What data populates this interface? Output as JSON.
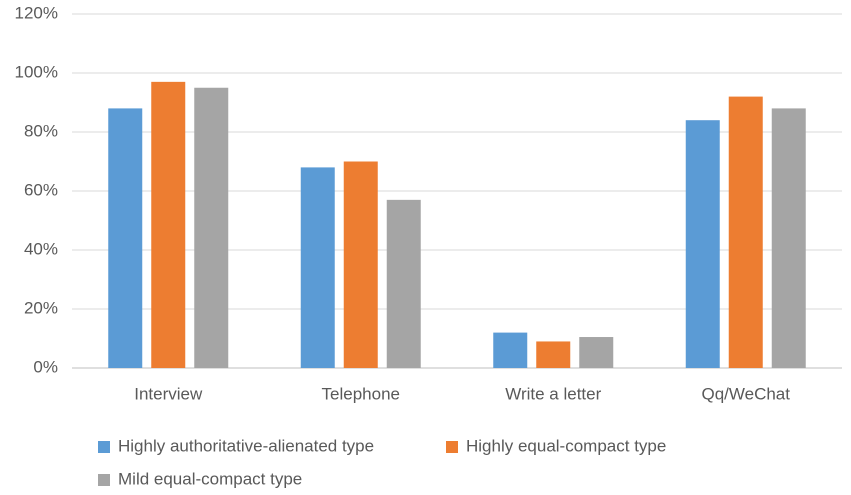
{
  "chart_data": {
    "type": "bar",
    "categories": [
      "Interview",
      "Telephone",
      "Write a letter",
      "Qq/WeChat"
    ],
    "series": [
      {
        "name": "Highly authoritative-alienated type",
        "color": "#5b9bd5",
        "values": [
          88,
          68,
          12,
          84
        ]
      },
      {
        "name": "Highly equal-compact type",
        "color": "#ed7d31",
        "values": [
          97,
          70,
          9,
          92
        ]
      },
      {
        "name": "Mild equal-compact type",
        "color": "#a5a5a5",
        "values": [
          95,
          57,
          10.5,
          88
        ]
      }
    ],
    "ylim": [
      0,
      120
    ],
    "yticks": [
      {
        "value": 0,
        "label": "0%"
      },
      {
        "value": 20,
        "label": "20%"
      },
      {
        "value": 40,
        "label": "40%"
      },
      {
        "value": 60,
        "label": "60%"
      },
      {
        "value": 80,
        "label": "80%"
      },
      {
        "value": 100,
        "label": "100%"
      },
      {
        "value": 120,
        "label": "120%"
      }
    ],
    "grid": true,
    "legend": "bottom"
  }
}
